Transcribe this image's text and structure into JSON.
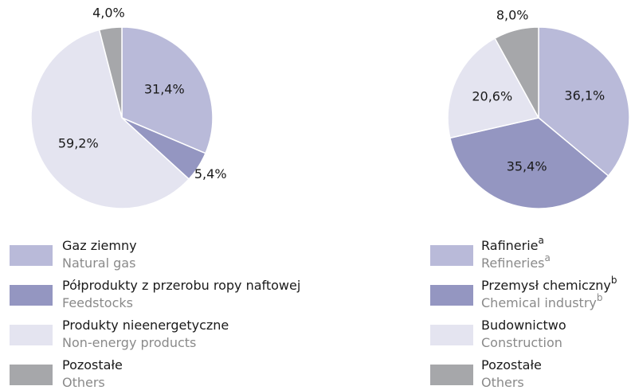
{
  "chart_data": [
    {
      "type": "pie",
      "categories": [
        {
          "name": "Gaz ziemny",
          "name_en": "Natural gas"
        },
        {
          "name": "Półprodukty z przerobu ropy naftowej",
          "name_en": "Feedstocks"
        },
        {
          "name": "Produkty nieenergetyczne",
          "name_en": "Non-energy products"
        },
        {
          "name": "Pozostałe",
          "name_en": "Others"
        }
      ],
      "values": [
        31.4,
        5.4,
        59.2,
        4.0
      ],
      "value_labels": [
        "31,4%",
        "5,4%",
        "59,2%",
        "4,0%"
      ],
      "colors": [
        "#b9bad9",
        "#9496c1",
        "#e4e4f0",
        "#a6a7aa"
      ]
    },
    {
      "type": "pie",
      "categories": [
        {
          "name": "Rafinerie",
          "note": "a",
          "name_en": "Refineries",
          "note_en": "a"
        },
        {
          "name": "Przemysł chemiczny",
          "note": "b",
          "name_en": "Chemical industry",
          "note_en": "b"
        },
        {
          "name": "Budownictwo",
          "name_en": "Construction"
        },
        {
          "name": "Pozostałe",
          "name_en": "Others"
        }
      ],
      "values": [
        36.1,
        35.4,
        20.6,
        8.0
      ],
      "value_labels": [
        "36,1%",
        "35,4%",
        "20,6%",
        "8,0%"
      ],
      "colors": [
        "#b9bad9",
        "#9496c1",
        "#e4e4f0",
        "#a6a7aa"
      ]
    }
  ]
}
